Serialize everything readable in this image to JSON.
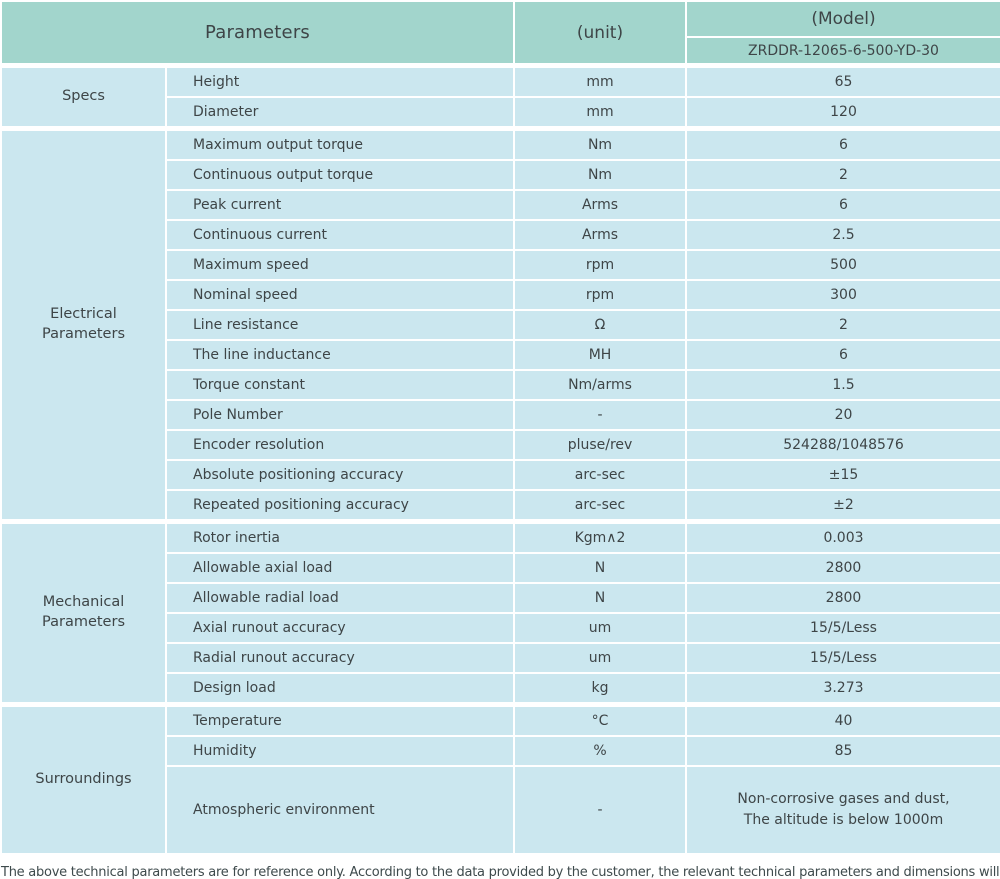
{
  "colors": {
    "header_bg": "#a2d5cc",
    "cell_bg": "#cbe7ef",
    "border": "#ffffff",
    "text": "#3e4547"
  },
  "table": {
    "header": {
      "parameters": "Parameters",
      "unit": "(unit)",
      "model_label": "(Model)",
      "model_value": "ZRDDR-12065-6-500-YD-30"
    },
    "sections": [
      {
        "name": "Specs",
        "rows": [
          {
            "param": "Height",
            "unit": "mm",
            "value": "65"
          },
          {
            "param": "Diameter",
            "unit": "mm",
            "value": "120"
          }
        ]
      },
      {
        "name": "Electrical Parameters",
        "rows": [
          {
            "param": "Maximum output torque",
            "unit": "Nm",
            "value": "6"
          },
          {
            "param": "Continuous output torque",
            "unit": "Nm",
            "value": "2"
          },
          {
            "param": "Peak current",
            "unit": "Arms",
            "value": "6"
          },
          {
            "param": "Continuous current",
            "unit": "Arms",
            "value": "2.5"
          },
          {
            "param": "Maximum speed",
            "unit": "rpm",
            "value": "500"
          },
          {
            "param": "Nominal speed",
            "unit": "rpm",
            "value": "300"
          },
          {
            "param": "Line resistance",
            "unit": "Ω",
            "value": "2"
          },
          {
            "param": "The line inductance",
            "unit": "MH",
            "value": "6"
          },
          {
            "param": "Torque constant",
            "unit": "Nm/arms",
            "value": "1.5"
          },
          {
            "param": "Pole Number",
            "unit": "-",
            "value": "20"
          },
          {
            "param": "Encoder resolution",
            "unit": "pluse/rev",
            "value": "524288/1048576"
          },
          {
            "param": "Absolute positioning accuracy",
            "unit": "arc-sec",
            "value": "±15"
          },
          {
            "param": "Repeated positioning accuracy",
            "unit": "arc-sec",
            "value": "±2"
          }
        ]
      },
      {
        "name": "Mechanical Parameters",
        "rows": [
          {
            "param": "Rotor inertia",
            "unit": "Kgm∧2",
            "value": "0.003"
          },
          {
            "param": "Allowable axial load",
            "unit": "N",
            "value": "2800"
          },
          {
            "param": "Allowable radial load",
            "unit": "N",
            "value": "2800"
          },
          {
            "param": "Axial runout accuracy",
            "unit": "um",
            "value": "15/5/Less"
          },
          {
            "param": "Radial runout accuracy",
            "unit": "um",
            "value": "15/5/Less"
          },
          {
            "param": "Design load",
            "unit": "kg",
            "value": "3.273"
          }
        ]
      },
      {
        "name": "Surroundings",
        "rows": [
          {
            "param": "Temperature",
            "unit": "°C",
            "value": "40"
          },
          {
            "param": "Humidity",
            "unit": "%",
            "value": "85"
          },
          {
            "param": "Atmospheric environment",
            "unit": "-",
            "value": "Non-corrosive gases and dust,\nThe altitude is below 1000m"
          }
        ]
      }
    ],
    "footnote": "The above technical parameters are for reference only. According to the data provided by the customer, the relevant technical parameters and dimensions will be issued."
  }
}
